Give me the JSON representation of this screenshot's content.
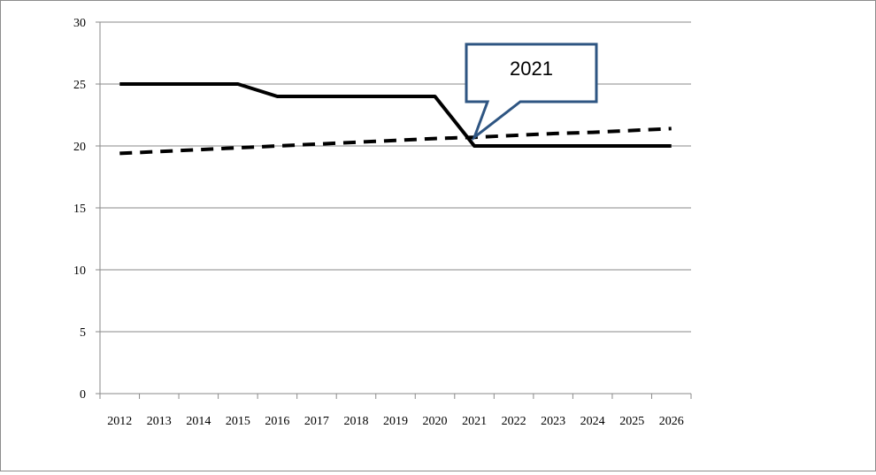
{
  "chart_data": {
    "type": "line",
    "title": "",
    "xlabel": "",
    "ylabel": "",
    "x": [
      "2012",
      "2013",
      "2014",
      "2015",
      "2016",
      "2017",
      "2018",
      "2019",
      "2020",
      "2021",
      "2022",
      "2023",
      "2024",
      "2025",
      "2026"
    ],
    "ylim": [
      0,
      30
    ],
    "yticks": [
      0,
      5,
      10,
      15,
      20,
      25,
      30
    ],
    "grid": true,
    "legend": "none",
    "series": [
      {
        "style": "solid",
        "color": "#000000",
        "values": [
          25,
          25,
          25,
          25,
          24,
          24,
          24,
          24,
          24,
          20,
          20,
          20,
          20,
          20,
          20
        ]
      },
      {
        "style": "dashed",
        "color": "#000000",
        "values": [
          19.4,
          19.55,
          19.7,
          19.85,
          20.0,
          20.15,
          20.3,
          20.45,
          20.6,
          20.7,
          20.85,
          21.0,
          21.1,
          21.25,
          21.4
        ]
      }
    ],
    "annotation": {
      "text": "2021",
      "x": "2021",
      "y": 20.7,
      "border_color": "#2e5582"
    }
  }
}
